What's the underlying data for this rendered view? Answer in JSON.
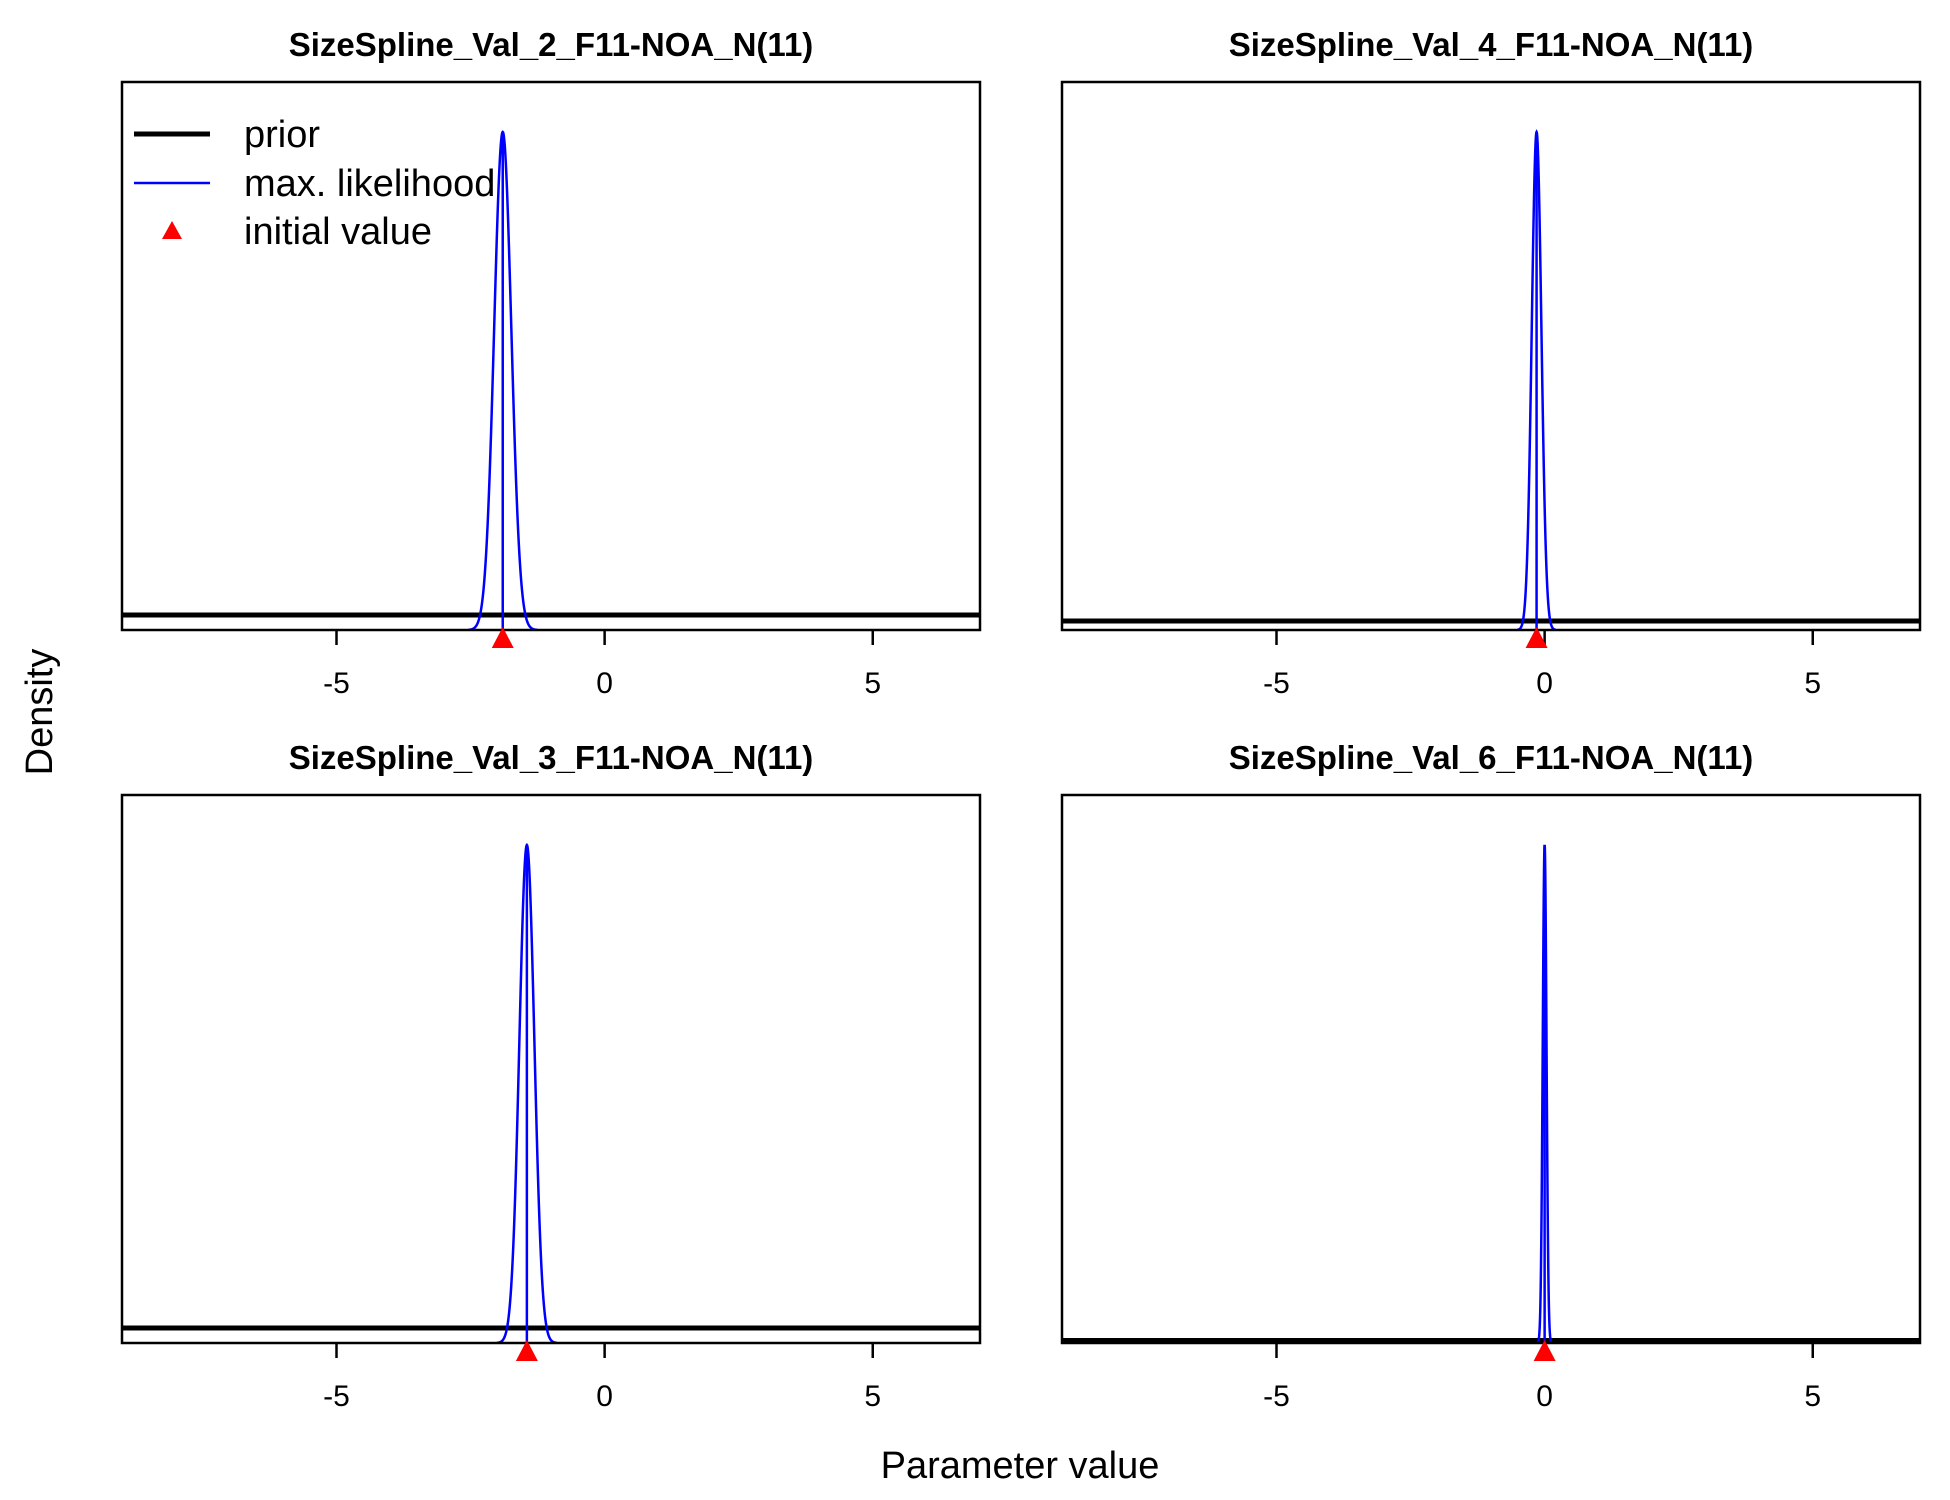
{
  "figure": {
    "ylabel": "Density",
    "xlabel": "Parameter value"
  },
  "legend": {
    "items": [
      {
        "label": "prior",
        "symbol": "line",
        "color": "#000000"
      },
      {
        "label": "max. likelihood",
        "symbol": "line",
        "color": "#0000ff"
      },
      {
        "label": "initial value",
        "symbol": "triangle",
        "color": "#ff0000"
      }
    ]
  },
  "colors": {
    "prior": "#000000",
    "max_likelihood": "#0000ff",
    "initial_value": "#ff0000"
  },
  "chart_data": [
    {
      "type": "line",
      "title": "SizeSpline_Val_2_F11-NOA_N(11)",
      "xlim": [
        -9,
        7
      ],
      "xticks": [
        -5,
        0,
        5
      ],
      "tick_labels": [
        "-5",
        "0",
        "5"
      ],
      "prior_level": 0.03,
      "ml_mean": -1.9,
      "ml_sd": 0.16,
      "initial_value": -1.9,
      "has_legend": true
    },
    {
      "type": "line",
      "title": "SizeSpline_Val_4_F11-NOA_N(11)",
      "xlim": [
        -9,
        7
      ],
      "xticks": [
        -5,
        0,
        5
      ],
      "tick_labels": [
        "-5",
        "0",
        "5"
      ],
      "prior_level": 0.018,
      "ml_mean": -0.15,
      "ml_sd": 0.09,
      "initial_value": -0.15,
      "has_legend": false
    },
    {
      "type": "line",
      "title": "SizeSpline_Val_3_F11-NOA_N(11)",
      "xlim": [
        -9,
        7
      ],
      "xticks": [
        -5,
        0,
        5
      ],
      "tick_labels": [
        "-5",
        "0",
        "5"
      ],
      "prior_level": 0.03,
      "ml_mean": -1.45,
      "ml_sd": 0.14,
      "initial_value": -1.45,
      "has_legend": false
    },
    {
      "type": "line",
      "title": "SizeSpline_Val_6_F11-NOA_N(11)",
      "xlim": [
        -9,
        7
      ],
      "xticks": [
        -5,
        0,
        5
      ],
      "tick_labels": [
        "-5",
        "0",
        "5"
      ],
      "prior_level": 0.005,
      "ml_mean": 0.0,
      "ml_sd": 0.035,
      "initial_value": 0.0,
      "has_legend": false
    }
  ]
}
